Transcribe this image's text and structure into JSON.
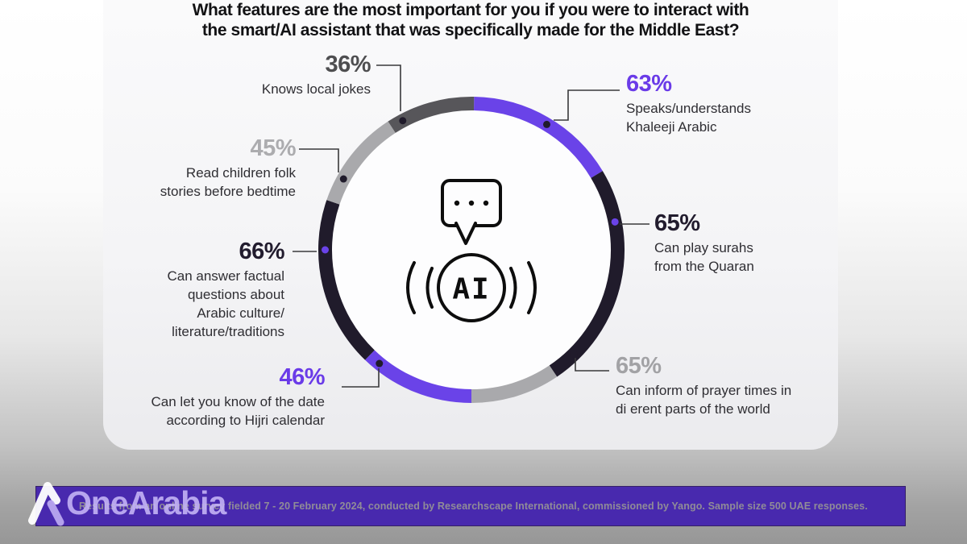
{
  "title": {
    "line1": "What features are the most important for you if you were to interact with",
    "line2": "the smart/AI assistant that was specifically made for the Middle East?"
  },
  "center_icon": {
    "ai_label": "AI"
  },
  "chart_data": {
    "type": "pie",
    "title": "What features are the most important for you if you were to interact with the smart/AI assistant that was specifically made for the Middle East?",
    "unit": "%",
    "legend_position": "around-ring-callouts",
    "categories": [
      "Speaks/understands Khaleeji Arabic",
      "Can play surahs from the Quaran",
      "Can inform of prayer times in di erent parts of the world",
      "Can let you know of the date according to Hijri calendar",
      "Can answer factual questions about Arabic culture/literature/traditions",
      "Read children folk stories before bedtime",
      "Knows local jokes"
    ],
    "values": [
      63,
      65,
      65,
      46,
      66,
      45,
      36
    ],
    "segments": [
      {
        "label": "Speaks/understands Khaleeji Arabic",
        "value": 63,
        "color": "#6A43E8",
        "start_angle": 1,
        "end_angle": 59,
        "dot_angle": 31,
        "dot_color": "#201B2B"
      },
      {
        "label": "Can play surahs from the Quaran",
        "value": 65,
        "color": "#201B2B",
        "start_angle": 59,
        "end_angle": 146,
        "dot_angle": 79,
        "dot_color": "#6A43E8"
      },
      {
        "label": "Can inform of prayer times in di erent parts of the world",
        "value": 65,
        "color": "#A9A9AC",
        "start_angle": 146,
        "end_angle": 180,
        "dot_angle": 135.5,
        "dot_color": "#201B2B"
      },
      {
        "label": "Can let you know of the date according to Hijri calendar",
        "value": 46,
        "color": "#6A43E8",
        "start_angle": 180,
        "end_angle": 224,
        "dot_angle": 219,
        "dot_color": "#201B2B"
      },
      {
        "label": "Can answer factual questions about Arabic culture/literature/traditions",
        "value": 66,
        "color": "#201B2B",
        "start_angle": 224,
        "end_angle": 289,
        "dot_angle": 270,
        "dot_color": "#6A43E8"
      },
      {
        "label": "Read children folk stories before bedtime",
        "value": 45,
        "color": "#A9A9AC",
        "start_angle": 289,
        "end_angle": 327,
        "dot_angle": 299,
        "dot_color": "#201B2B"
      },
      {
        "label": "Knows local jokes",
        "value": 36,
        "color": "#57565A",
        "start_angle": 327,
        "end_angle": 361,
        "dot_angle": 332,
        "dot_color": "#201B2B"
      }
    ]
  },
  "callouts": {
    "khaleeji": {
      "pct": "63%",
      "color": "#6A3BE8",
      "label": "Speaks/understands\nKhaleeji Arabic"
    },
    "surahs": {
      "pct": "65%",
      "color": "#221C2E",
      "label": "Can play surahs\nfrom the Quaran"
    },
    "prayer": {
      "pct": "65%",
      "color": "#A2A2A5",
      "label": "Can inform of prayer times in\ndi erent parts of the world"
    },
    "hijri": {
      "pct": "46%",
      "color": "#6A3BE8",
      "label": "Can let you know of the date\naccording to Hijri calendar"
    },
    "culture": {
      "pct": "66%",
      "color": "#221C2E",
      "label": "Can answer factual\nquestions about\nArabic culture/\nliterature/traditions"
    },
    "folk": {
      "pct": "45%",
      "color": "#ACACAF",
      "label": "Read children folk\nstories before bedtime"
    },
    "jokes": {
      "pct": "36%",
      "color": "#4E4E50",
      "label": "Knows local jokes"
    }
  },
  "footer": {
    "brand": "OneArabia",
    "source": "Results from an online survey fielded 7 - 20 February 2024, conducted by Researchscape International, commissioned by Yango. Sample size 500 UAE responses.",
    "bar_color": "#4829AE"
  }
}
